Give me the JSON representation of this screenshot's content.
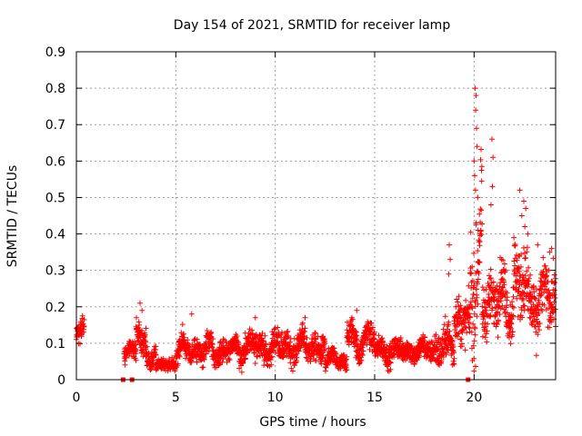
{
  "chart_data": {
    "type": "scatter",
    "title": "Day 154 of 2021, SRMTID for receiver lamp",
    "xlabel": "GPS time / hours",
    "ylabel": "SRMTID / TECUs",
    "xlim": [
      0,
      24.1
    ],
    "ylim": [
      0,
      0.9
    ],
    "grid": true,
    "x_ticks": [
      0,
      5,
      10,
      15,
      20
    ],
    "y_ticks": [
      0,
      0.1,
      0.2,
      0.3,
      0.4,
      0.5,
      0.6,
      0.7,
      0.8,
      0.9
    ],
    "x_tick_labels": [
      "0",
      "5",
      "10",
      "15",
      "20"
    ],
    "y_tick_labels": [
      "0",
      "0.1",
      "0.2",
      "0.3",
      "0.4",
      "0.5",
      "0.6",
      "0.7",
      "0.8",
      "0.9"
    ],
    "marker": "+",
    "color": "#ff0000",
    "series": [
      {
        "name": "SRMTID",
        "segments": [
          {
            "x_start": 0.0,
            "x_end": 0.4,
            "base": 0.13,
            "amp": 0.03,
            "noise": 0.025
          },
          {
            "x_start": 2.4,
            "x_end": 3.0,
            "base": 0.08,
            "amp": 0.02,
            "noise": 0.02
          },
          {
            "x_start": 3.0,
            "x_end": 3.5,
            "base": 0.13,
            "amp": 0.05,
            "noise": 0.03
          },
          {
            "x_start": 3.5,
            "x_end": 4.0,
            "base": 0.07,
            "amp": 0.02,
            "noise": 0.02
          },
          {
            "x_start": 4.0,
            "x_end": 5.0,
            "base": 0.04,
            "amp": 0.01,
            "noise": 0.012
          },
          {
            "x_start": 5.0,
            "x_end": 8.0,
            "base": 0.08,
            "amp": 0.03,
            "noise": 0.025
          },
          {
            "x_start": 8.0,
            "x_end": 12.5,
            "base": 0.09,
            "amp": 0.03,
            "noise": 0.03
          },
          {
            "x_start": 12.5,
            "x_end": 13.6,
            "base": 0.05,
            "amp": 0.02,
            "noise": 0.02
          },
          {
            "x_start": 13.6,
            "x_end": 15.0,
            "base": 0.11,
            "amp": 0.04,
            "noise": 0.03
          },
          {
            "x_start": 15.0,
            "x_end": 18.0,
            "base": 0.08,
            "amp": 0.02,
            "noise": 0.025
          },
          {
            "x_start": 18.0,
            "x_end": 19.0,
            "base": 0.09,
            "amp": 0.03,
            "noise": 0.04
          },
          {
            "x_start": 19.0,
            "x_end": 19.8,
            "base": 0.15,
            "amp": 0.05,
            "noise": 0.05
          },
          {
            "x_start": 19.8,
            "x_end": 20.4,
            "base": 0.32,
            "amp": 0.15,
            "noise": 0.12
          },
          {
            "x_start": 20.4,
            "x_end": 22.0,
            "base": 0.22,
            "amp": 0.06,
            "noise": 0.06
          },
          {
            "x_start": 22.0,
            "x_end": 23.0,
            "base": 0.26,
            "amp": 0.08,
            "noise": 0.08
          },
          {
            "x_start": 23.0,
            "x_end": 24.1,
            "base": 0.22,
            "amp": 0.06,
            "noise": 0.06
          }
        ],
        "spikes": [
          [
            20.05,
            0.8
          ],
          [
            20.1,
            0.78
          ],
          [
            20.08,
            0.74
          ],
          [
            20.12,
            0.69
          ],
          [
            20.15,
            0.64
          ],
          [
            20.0,
            0.6
          ],
          [
            20.03,
            0.56
          ],
          [
            20.07,
            0.52
          ],
          [
            20.18,
            0.5
          ],
          [
            20.1,
            0.43
          ],
          [
            20.2,
            0.41
          ],
          [
            20.3,
            0.4
          ],
          [
            20.9,
            0.66
          ],
          [
            20.95,
            0.61
          ],
          [
            20.92,
            0.53
          ],
          [
            20.85,
            0.48
          ],
          [
            18.75,
            0.37
          ],
          [
            18.8,
            0.33
          ],
          [
            18.72,
            0.29
          ],
          [
            22.3,
            0.52
          ],
          [
            22.5,
            0.49
          ],
          [
            22.6,
            0.47
          ],
          [
            22.4,
            0.45
          ],
          [
            22.55,
            0.42
          ],
          [
            22.7,
            0.4
          ],
          [
            23.2,
            0.37
          ],
          [
            23.8,
            0.35
          ],
          [
            23.9,
            0.36
          ],
          [
            14.1,
            0.19
          ],
          [
            3.2,
            0.21
          ],
          [
            3.3,
            0.19
          ],
          [
            5.8,
            0.18
          ],
          [
            9.0,
            0.17
          ],
          [
            11.5,
            0.17
          ]
        ],
        "zero_points": [
          2.35,
          2.8,
          19.7
        ]
      }
    ]
  }
}
